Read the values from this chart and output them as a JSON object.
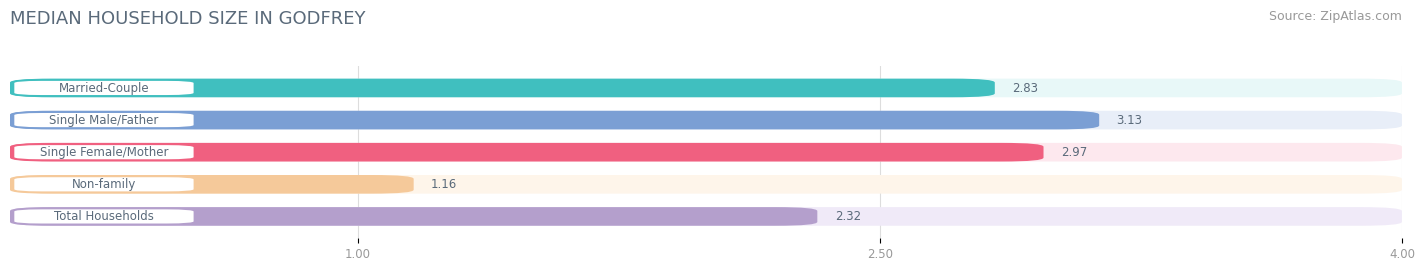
{
  "title": "MEDIAN HOUSEHOLD SIZE IN GODFREY",
  "source": "Source: ZipAtlas.com",
  "categories": [
    "Married-Couple",
    "Single Male/Father",
    "Single Female/Mother",
    "Non-family",
    "Total Households"
  ],
  "values": [
    2.83,
    3.13,
    2.97,
    1.16,
    2.32
  ],
  "bar_colors": [
    "#40bfbf",
    "#7b9fd4",
    "#f06080",
    "#f5c99a",
    "#b49fcc"
  ],
  "bar_bg_colors": [
    "#e8f8f8",
    "#e8eef8",
    "#fde8ee",
    "#fef5ea",
    "#f0eaf8"
  ],
  "label_box_color": "#ffffff",
  "label_border_colors": [
    "#40bfbf",
    "#7b9fd4",
    "#f06080",
    "#f5c99a",
    "#b49fcc"
  ],
  "xlim": [
    0,
    4.0
  ],
  "xticks": [
    1.0,
    2.5,
    4.0
  ],
  "xtick_labels": [
    "1.00",
    "2.50",
    "4.00"
  ],
  "title_color": "#5a6a7a",
  "source_color": "#999999",
  "label_text_color": "#5a6a7a",
  "value_text_color": "#5a6a7a",
  "title_fontsize": 13,
  "source_fontsize": 9,
  "label_fontsize": 8.5,
  "value_fontsize": 8.5,
  "tick_fontsize": 8.5,
  "background_color": "#ffffff"
}
